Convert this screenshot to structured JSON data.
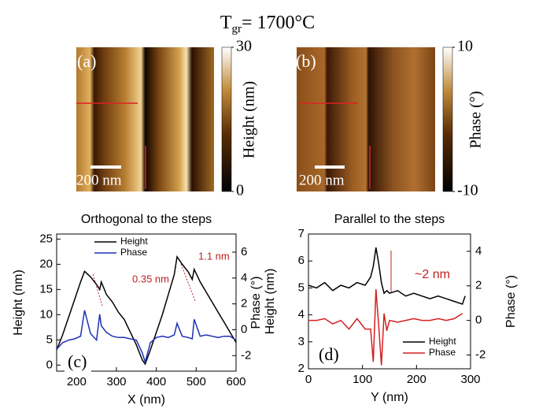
{
  "title": {
    "main": "T",
    "sub": "gr",
    "rest": "= 1700°C"
  },
  "panels": [
    {
      "label": "(a)",
      "scale_bar": "200 nm",
      "colorbar_label": "Height (nm)",
      "clim": [
        0,
        30
      ],
      "cticks": [
        0,
        30
      ]
    },
    {
      "label": "(b)",
      "scale_bar": "200 nm",
      "colorbar_label": "Phase (°)",
      "clim": [
        -10,
        10
      ],
      "cticks": [
        -10,
        10
      ]
    }
  ],
  "chart_data": [
    {
      "type": "line",
      "title": "Orthogonal to the steps",
      "panel_label": "(c)",
      "x_label": "X (nm)",
      "y_label": "Height (nm)",
      "y2_label": "Phase (°)",
      "x": [
        150,
        165,
        180,
        195,
        210,
        220,
        235,
        250,
        258,
        262,
        275,
        290,
        305,
        320,
        335,
        350,
        365,
        372,
        385,
        400,
        415,
        430,
        445,
        452,
        465,
        480,
        490,
        495,
        510,
        525,
        540,
        555,
        570,
        585,
        600
      ],
      "xlim": [
        150,
        600
      ],
      "xticks": [
        200,
        300,
        400,
        500,
        600
      ],
      "ylim": [
        -1.2,
        26
      ],
      "yticks": [
        0,
        5,
        10,
        15,
        20,
        25
      ],
      "y2lim": [
        -3.2,
        7.4
      ],
      "y2ticks": [
        -2,
        0,
        2,
        4,
        6
      ],
      "series": [
        {
          "name": "Height",
          "color": "#000000",
          "values": [
            3,
            6,
            9.5,
            13,
            16.5,
            18.6,
            17.5,
            16,
            15,
            16.5,
            14,
            12.5,
            10.5,
            9,
            6.5,
            4,
            1,
            0.2,
            3,
            6.5,
            10,
            14,
            18,
            21.5,
            20,
            18.5,
            17,
            19,
            16.5,
            14.5,
            12.5,
            10.5,
            8.5,
            6.5,
            4.5
          ]
        },
        {
          "name": "Phase",
          "color": "#1f2fb4",
          "axis": "y2",
          "values": [
            -1.5,
            -1,
            -0.8,
            -0.7,
            -0.5,
            1.5,
            -0.3,
            -0.8,
            1.2,
            0.3,
            -0.2,
            -0.5,
            -0.6,
            -0.6,
            -0.7,
            -0.8,
            -1.8,
            -2.5,
            -1,
            -0.6,
            -0.5,
            -0.6,
            -0.4,
            0.5,
            -0.5,
            -0.6,
            -0.7,
            0.8,
            -0.5,
            -0.4,
            -0.5,
            -0.6,
            -0.5,
            -0.5,
            -0.8
          ]
        }
      ],
      "annotations": [
        "0.35 nm",
        "1.1 nm"
      ]
    },
    {
      "type": "line",
      "title": "Parallel to the steps",
      "panel_label": "(d)",
      "x_label": "Y (nm)",
      "y_label": "Height (nm)",
      "y2_label": "Phase (°)",
      "x": [
        0,
        15,
        30,
        45,
        60,
        75,
        90,
        105,
        115,
        120,
        125,
        130,
        135,
        140,
        145,
        150,
        165,
        180,
        195,
        210,
        225,
        240,
        255,
        270,
        285,
        290
      ],
      "xlim": [
        0,
        300
      ],
      "xticks": [
        0,
        100,
        200,
        300
      ],
      "ylim": [
        2,
        7
      ],
      "yticks": [
        2,
        3,
        4,
        5,
        6,
        7
      ],
      "y2lim": [
        -2.8,
        5
      ],
      "y2ticks": [
        -2,
        0,
        2,
        4
      ],
      "series": [
        {
          "name": "Height",
          "color": "#000000",
          "values": [
            5.1,
            5,
            5.2,
            4.9,
            5.1,
            5,
            5.2,
            5.1,
            5.4,
            5.8,
            6.5,
            5.9,
            5.2,
            4.8,
            4.9,
            4.8,
            4.9,
            4.7,
            4.8,
            4.7,
            4.6,
            4.7,
            4.6,
            4.5,
            4.4,
            4.7
          ]
        },
        {
          "name": "Phase",
          "color": "#d42020",
          "axis": "y2",
          "values": [
            0,
            0,
            0.1,
            -0.2,
            0,
            -0.5,
            0.1,
            -0.5,
            -0.5,
            -2.4,
            1.8,
            -0.3,
            -2.6,
            0.4,
            -0.6,
            0,
            -0.1,
            0,
            0.1,
            0,
            0,
            0.1,
            0,
            0.1,
            0.4,
            null
          ]
        }
      ],
      "annotations": [
        "~2 nm"
      ]
    }
  ]
}
